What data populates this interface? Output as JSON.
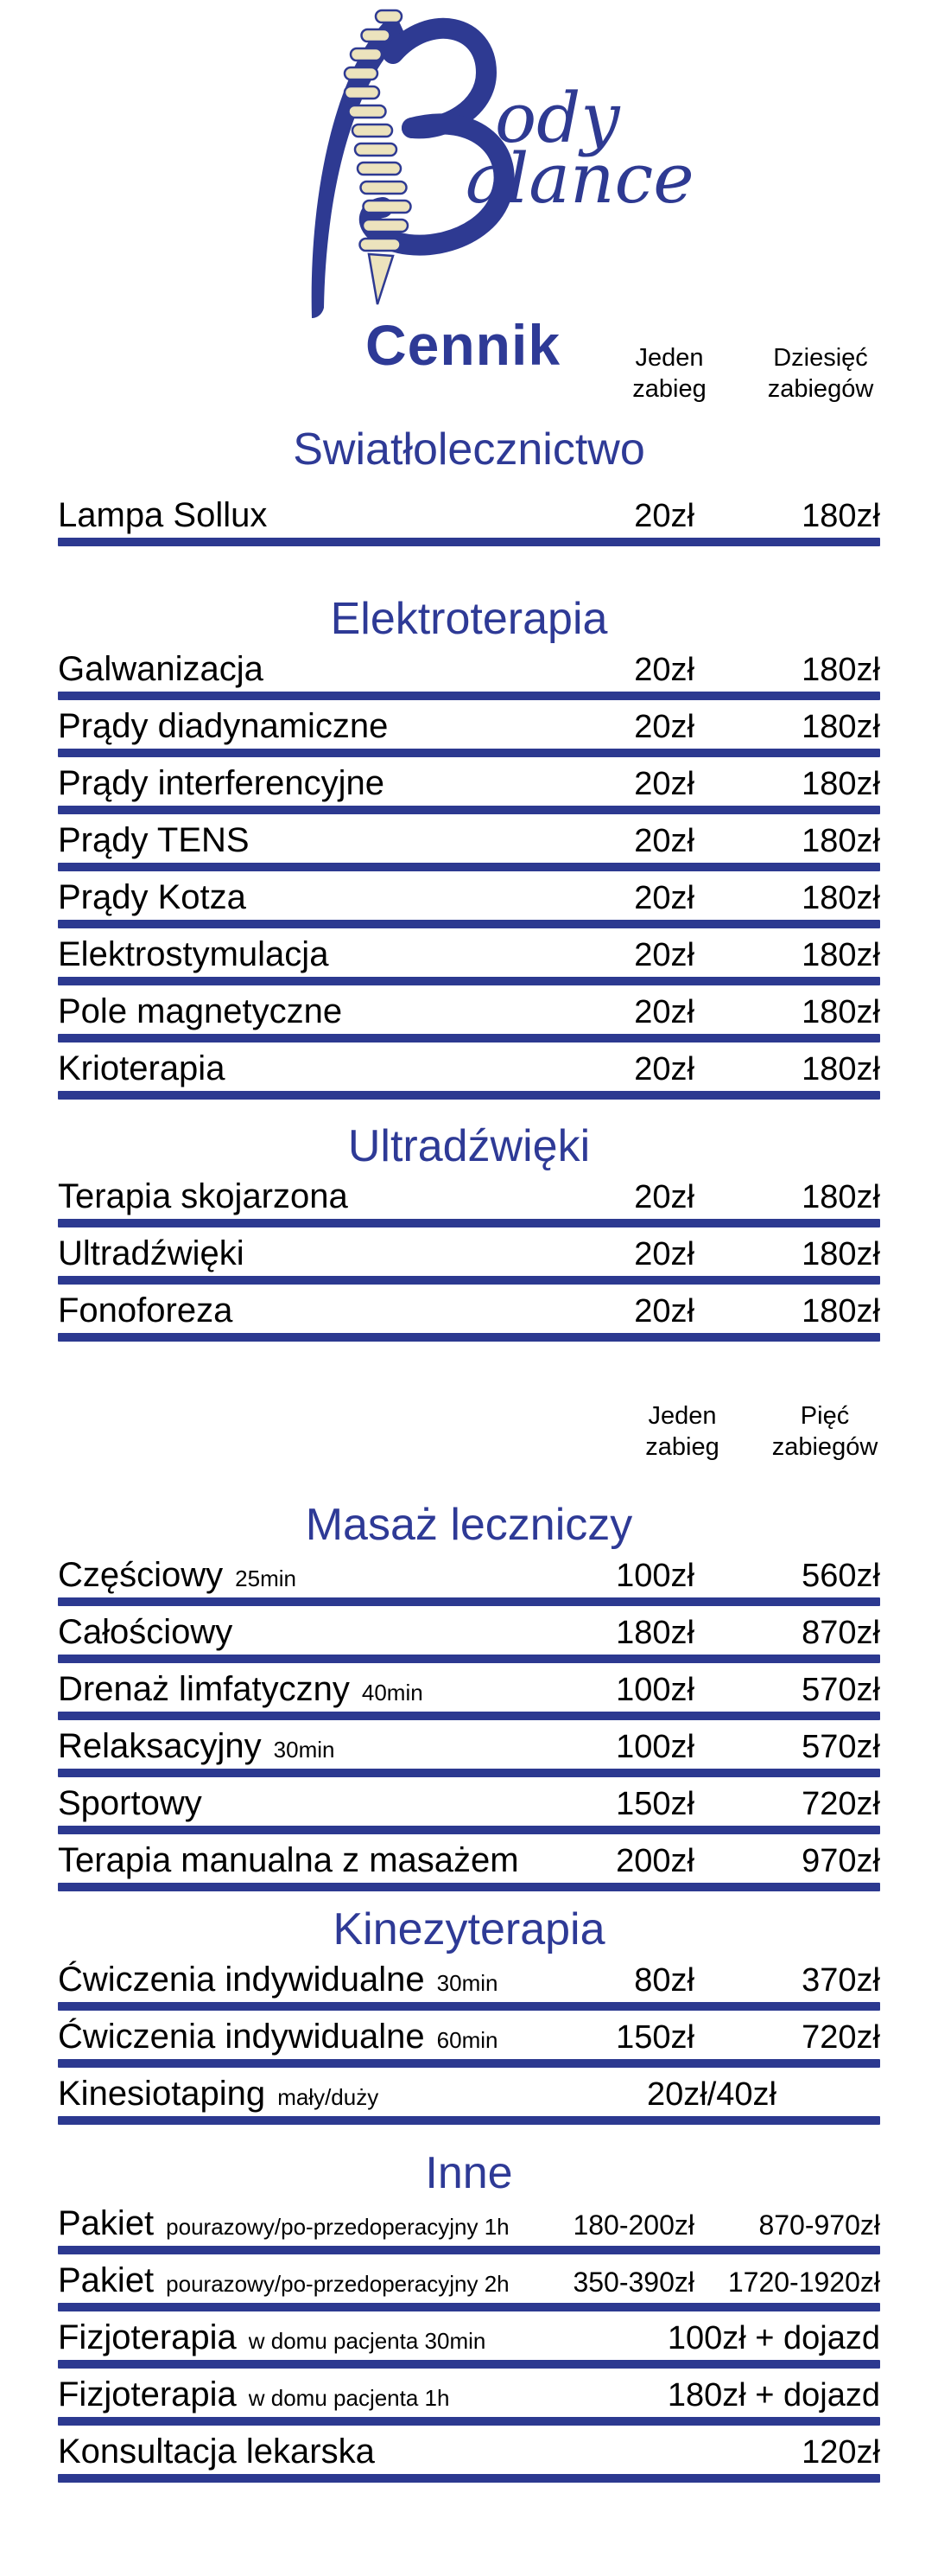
{
  "title": "Cennik",
  "logo": {
    "brand": "Body Balance",
    "word_top": "ody",
    "word_bottom": "alance",
    "icon": "spine-icon"
  },
  "header_columns_top": {
    "col1": {
      "line1": "Jeden",
      "line2": "zabieg"
    },
    "col2": {
      "line1": "Dziesięć",
      "line2": "zabiegów"
    }
  },
  "sections": [
    {
      "name": "Swiatłolecznictwo",
      "rows": [
        {
          "label": "Lampa Sollux",
          "price1": "20zł",
          "price2": "180zł"
        }
      ]
    },
    {
      "name": "Elektroterapia",
      "rows": [
        {
          "label": "Galwanizacja",
          "price1": "20zł",
          "price2": "180zł"
        },
        {
          "label": "Prądy diadynamiczne",
          "price1": "20zł",
          "price2": "180zł"
        },
        {
          "label": "Prądy interferencyjne",
          "price1": "20zł",
          "price2": "180zł"
        },
        {
          "label": "Prądy TENS",
          "price1": "20zł",
          "price2": "180zł"
        },
        {
          "label": "Prądy Kotza",
          "price1": "20zł",
          "price2": "180zł"
        },
        {
          "label": "Elektrostymulacja",
          "price1": "20zł",
          "price2": "180zł"
        },
        {
          "label": "Pole magnetyczne",
          "price1": "20zł",
          "price2": "180zł"
        },
        {
          "label": "Krioterapia",
          "price1": "20zł",
          "price2": "180zł"
        }
      ]
    },
    {
      "name": "Ultradźwięki",
      "rows": [
        {
          "label": "Terapia skojarzona",
          "price1": "20zł",
          "price2": "180zł"
        },
        {
          "label": "Ultradźwięki",
          "price1": "20zł",
          "price2": "180zł"
        },
        {
          "label": "Fonoforeza",
          "price1": "20zł",
          "price2": "180zł"
        }
      ]
    },
    {
      "name": "Masaż leczniczy",
      "pre_headers": {
        "col1": {
          "line1": "Jeden",
          "line2": "zabieg"
        },
        "col2": {
          "line1": "Pięć",
          "line2": "zabiegów"
        }
      },
      "rows": [
        {
          "label": "Częściowy",
          "note": "25min",
          "price1": "100zł",
          "price2": "560zł"
        },
        {
          "label": "Całościowy",
          "price1": "180zł",
          "price2": "870zł"
        },
        {
          "label": "Drenaż limfatyczny",
          "note": "40min",
          "price1": "100zł",
          "price2": "570zł"
        },
        {
          "label": "Relaksacyjny",
          "note": "30min",
          "price1": "100zł",
          "price2": "570zł"
        },
        {
          "label": "Sportowy",
          "price1": "150zł",
          "price2": "720zł"
        },
        {
          "label": "Terapia manualna z masażem",
          "price1": "200zł",
          "price2": "970zł"
        }
      ]
    },
    {
      "name": "Kinezyterapia",
      "rows": [
        {
          "label": "Ćwiczenia indywidualne",
          "note": "30min",
          "price1": "80zł",
          "price2": "370zł"
        },
        {
          "label": "Ćwiczenia indywidualne",
          "note": "60min",
          "price1": "150zł",
          "price2": "720zł"
        },
        {
          "label": "Kinesiotaping",
          "note": "mały/duży",
          "price_span": "20zł/40zł",
          "span_align": "center"
        }
      ]
    },
    {
      "name": "Inne",
      "rows": [
        {
          "label": "Pakiet",
          "note": "pourazowy/po-przedoperacyjny 1h",
          "price1": "180-200zł",
          "price2": "870-970zł",
          "condensed": true
        },
        {
          "label": "Pakiet",
          "note": "pourazowy/po-przedoperacyjny 2h",
          "price1": "350-390zł",
          "price2": "1720-1920zł",
          "condensed": true
        },
        {
          "label": "Fizjoterapia",
          "note": "w domu pacjenta 30min",
          "price_span": "100zł + dojazd",
          "span_align": "right"
        },
        {
          "label": "Fizjoterapia",
          "note": "w domu pacjenta 1h",
          "price_span": "180zł + dojazd",
          "span_align": "right"
        },
        {
          "label": "Konsultacja lekarska",
          "price_span": "120zł",
          "span_align": "right"
        }
      ]
    }
  ],
  "colors": {
    "navy": "#2c3990",
    "header_navy": "#2e3a96",
    "spine_cream": "#ece3bd",
    "text": "#000000",
    "background": "#ffffff"
  }
}
